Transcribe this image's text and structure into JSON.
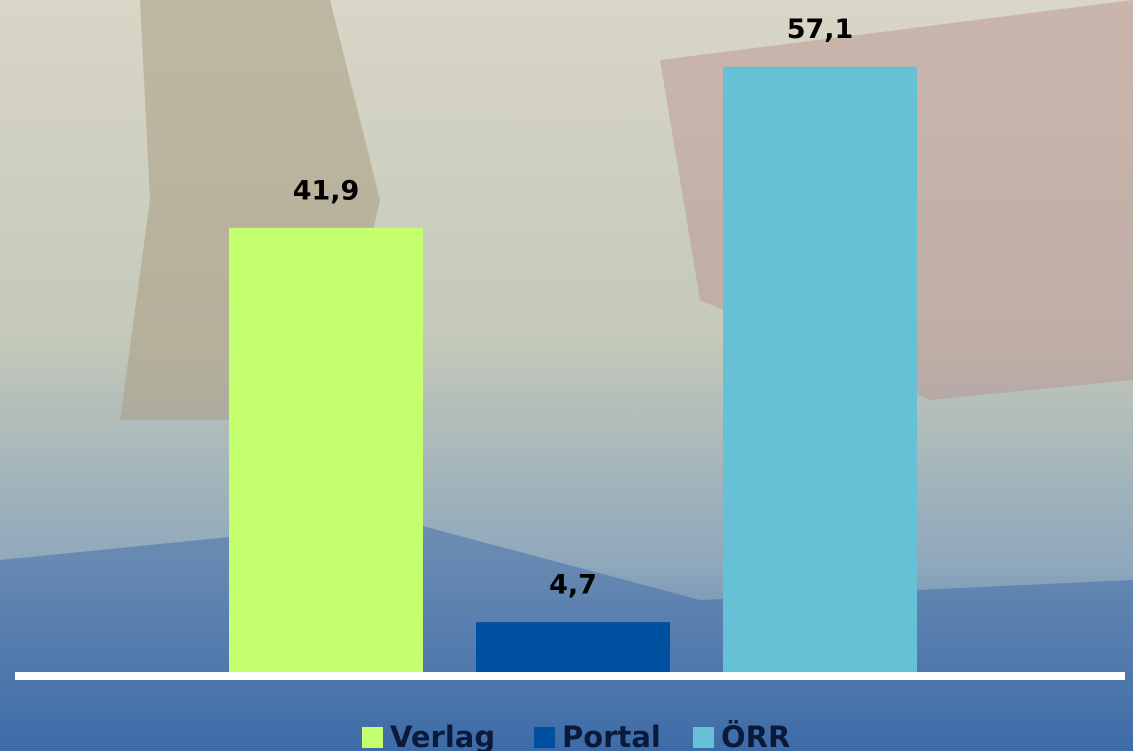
{
  "chart_data": {
    "type": "bar",
    "categories": [
      null
    ],
    "series": [
      {
        "name": "Verlag",
        "color": "#c4ff6e",
        "values": [
          41.9
        ],
        "value_labels": [
          "41,9"
        ]
      },
      {
        "name": "Portal",
        "color": "#0050a2",
        "values": [
          4.7
        ],
        "value_labels": [
          "4,7"
        ]
      },
      {
        "name": "ÖRR",
        "color": "#66c0d6",
        "values": [
          57.1
        ],
        "value_labels": [
          "57,1"
        ]
      }
    ]
  }
}
